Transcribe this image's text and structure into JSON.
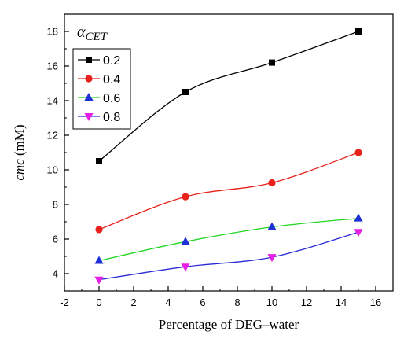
{
  "chart_data": {
    "type": "line",
    "xlabel": "Percentage of DEG–water",
    "ylabel_italic": "cmc",
    "ylabel_unit": " (mM)",
    "legend_title_main": "α",
    "legend_title_sub": "CET",
    "legend_position": "top-left",
    "xlim": [
      -2,
      17
    ],
    "ylim": [
      3,
      19
    ],
    "xticks": [
      -2,
      0,
      2,
      4,
      6,
      8,
      10,
      12,
      14,
      16
    ],
    "yticks": [
      4,
      6,
      8,
      10,
      12,
      14,
      16,
      18
    ],
    "x": [
      0,
      5,
      10,
      15
    ],
    "grid": false,
    "series": [
      {
        "name": "0.2",
        "values": [
          10.5,
          14.5,
          16.2,
          18.0
        ],
        "color": "#000000",
        "marker": "square"
      },
      {
        "name": "0.4",
        "values": [
          6.55,
          8.45,
          9.25,
          11.0
        ],
        "color": "#e8221a",
        "marker": "circle"
      },
      {
        "name": "0.6",
        "values": [
          4.75,
          5.85,
          6.7,
          7.2
        ],
        "color": "#1e2fd6",
        "marker": "triangle-up"
      },
      {
        "name": "0.8",
        "values": [
          3.65,
          4.4,
          4.95,
          6.4
        ],
        "color": "#e61fe6",
        "marker": "triangle-down"
      }
    ],
    "line_colors": [
      "#000000",
      "#e8221a",
      "#22d622",
      "#2a2ad6"
    ]
  }
}
